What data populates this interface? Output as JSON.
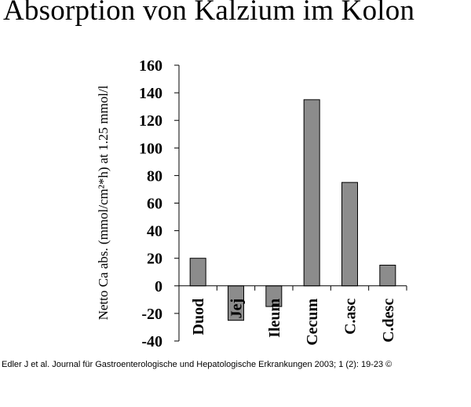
{
  "title": "Absorption von Kalzium im Kolon",
  "footer": "Edler J et al. Journal für Gastroenterologische und Hepatologische Erkrankungen 2003; 1 (2): 19-23 ©",
  "colors": {
    "bar": "#8c8c8c",
    "axis": "#000000"
  },
  "chart_data": {
    "type": "bar",
    "title": "Absorption von Kalzium im Kolon",
    "xlabel": "",
    "ylabel": "Netto Ca abs. (mmol/cm²*h) at 1.25 mmol/l",
    "ylim": [
      -40,
      160
    ],
    "yticks": [
      -40,
      -20,
      0,
      20,
      40,
      60,
      80,
      100,
      120,
      140,
      160
    ],
    "categories": [
      "Duod",
      "Jej",
      "Ileum",
      "Cecum",
      "C.asc",
      "C.desc"
    ],
    "values": [
      20,
      -25,
      -15,
      135,
      75,
      15
    ],
    "grid": false,
    "legend": "none"
  }
}
